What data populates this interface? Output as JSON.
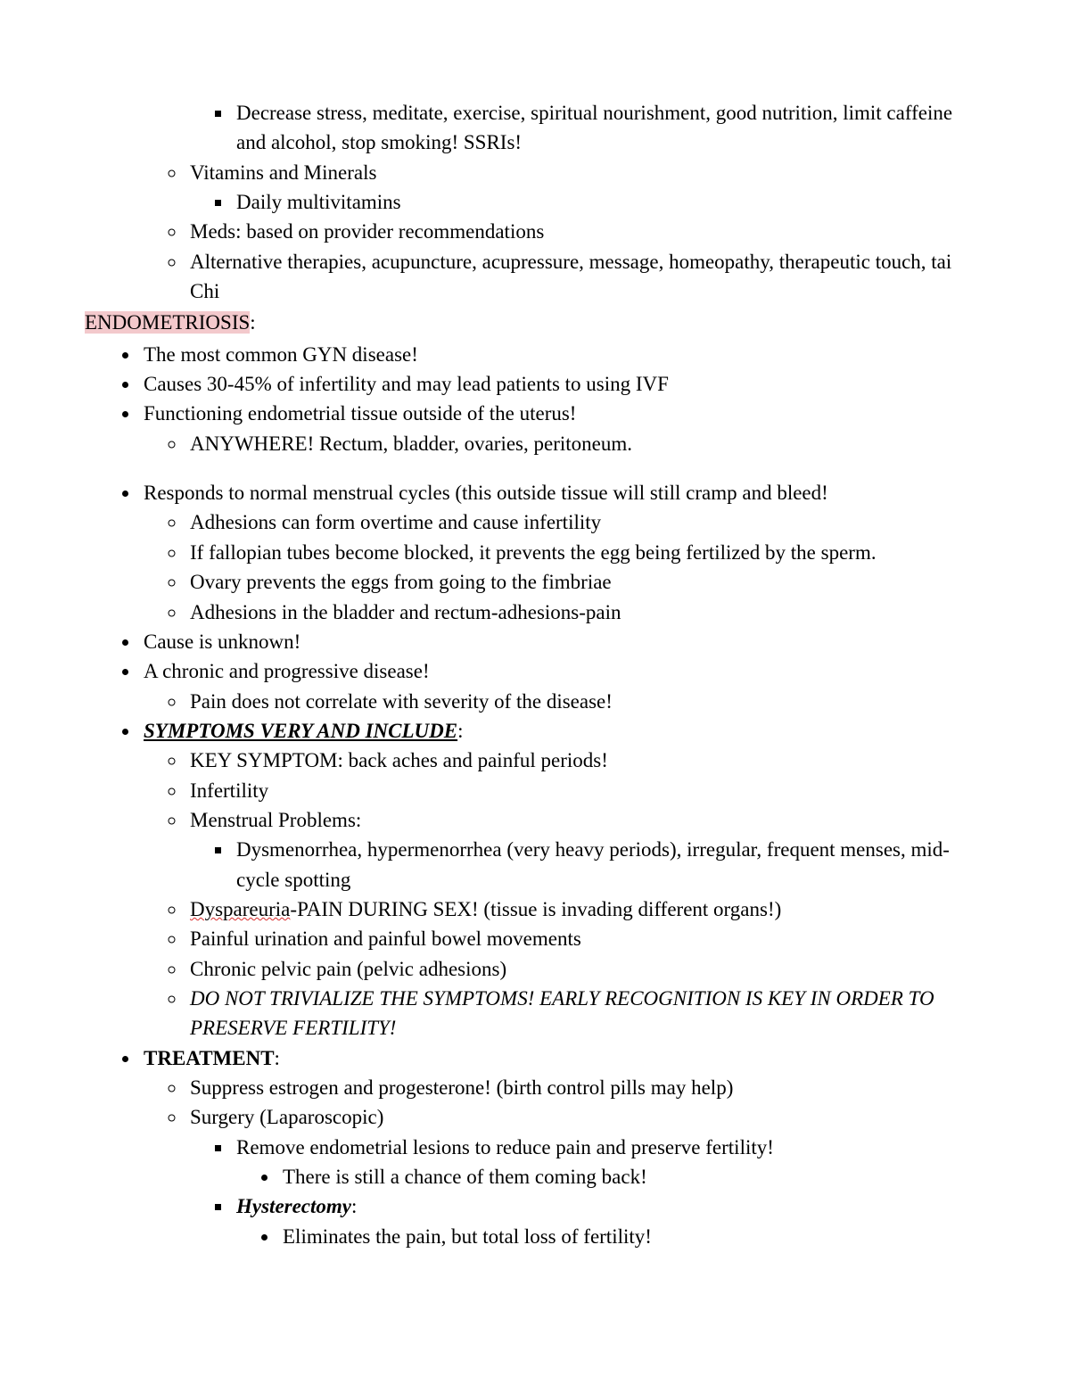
{
  "colors": {
    "text": "#000000",
    "background": "#ffffff",
    "highlight": "#f3c9cc",
    "spellcheck_wave": "#d92b2b"
  },
  "typography": {
    "font_family": "Times New Roman",
    "font_size_pt": 12,
    "line_height": 1.45
  },
  "top_fragment": {
    "square": [
      "Decrease stress, meditate, exercise, spiritual nourishment, good nutrition, limit caffeine and alcohol, stop smoking! SSRIs!"
    ],
    "circles": [
      "Vitamins and Minerals",
      "Meds: based on provider recommendations",
      "Alternative therapies, acupuncture, acupressure, message, homeopathy, therapeutic touch, tai Chi"
    ],
    "vitamins_sub": "Daily multivitamins"
  },
  "section": {
    "title_hl": "ENDOMETRIOSIS",
    "title_colon": ":",
    "bullets": {
      "b1": "The most common GYN disease!",
      "b2": "Causes 30-45% of infertility and may lead patients to using IVF",
      "b3": "Functioning endometrial tissue outside of the uterus!",
      "b3_sub": "ANYWHERE! Rectum, bladder, ovaries, peritoneum.",
      "b4": "Responds to normal menstrual cycles (this outside tissue will still cramp and bleed!",
      "b4_subs": [
        "Adhesions can form overtime and cause infertility",
        "If fallopian tubes become blocked, it prevents the egg being fertilized by the sperm.",
        "Ovary prevents the eggs from going to the fimbriae",
        "Adhesions in the bladder and rectum-adhesions-pain"
      ],
      "b5": " Cause is unknown!",
      "b6": "A chronic and progressive disease!",
      "b6_sub": "Pain does not correlate with severity of the disease!",
      "b7_label": "SYMPTOMS VERY AND INCLUDE",
      "b7_colon": ":",
      "b7_subs": {
        "s1": "KEY SYMPTOM: back aches and painful periods!",
        "s2": "Infertility",
        "s3": "Menstrual Problems:",
        "s3_sq": "Dysmenorrhea, hypermenorrhea (very heavy periods), irregular, frequent menses, mid-cycle spotting",
        "s4_word": "Dyspareuria",
        "s4_rest": "-PAIN DURING SEX! (tissue is invading different organs!)",
        "s5": "Painful urination and painful bowel movements",
        "s6": "Chronic pelvic pain (pelvic adhesions)",
        "s7": "DO NOT TRIVIALIZE THE SYMPTOMS! EARLY RECOGNITION IS KEY IN ORDER TO PRESERVE FERTILITY!"
      },
      "b8_label": "TREATMENT",
      "b8_colon": ":",
      "b8_subs": {
        "t1": "Suppress estrogen and progesterone! (birth control pills may help)",
        "t2": "Surgery (Laparoscopic)",
        "t2_sq1": "Remove endometrial lesions to reduce pain and preserve fertility!",
        "t2_sq1_d": "There is still a chance of them coming back!",
        "t2_sq2_label": "Hysterectomy",
        "t2_sq2_colon": ":",
        "t2_sq2_d": "Eliminates the pain, but total loss of fertility!"
      }
    }
  }
}
